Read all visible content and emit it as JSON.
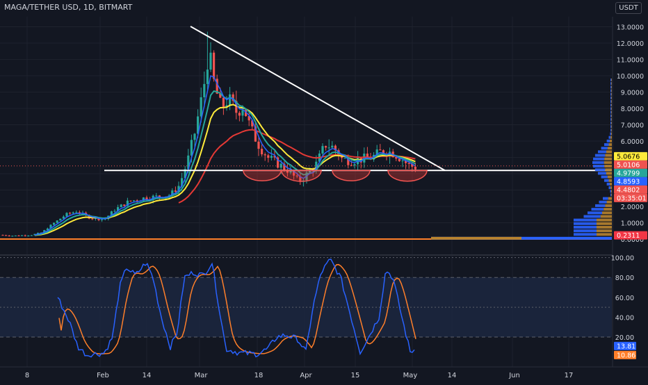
{
  "header": {
    "symbol_title": "MAGA/TETHER USD, 1D, BITMART",
    "currency_button": "USDT"
  },
  "colors": {
    "background": "#131722",
    "grid": "#1e222d",
    "up_candle": "#26a69a",
    "down_candle": "#ef5350",
    "ma_fast": "#2962ff",
    "ma_mid": "#26a69a",
    "ma_yellow": "#ffeb3b",
    "ma_red": "#e53935",
    "trendline": "#ffffff",
    "stoch_k": "#2962ff",
    "stoch_d": "#ff7f2a",
    "stoch_band": "#1c2740"
  },
  "price_axis": {
    "ticks": [
      "13.0000",
      "12.0000",
      "11.0000",
      "10.0000",
      "9.0000",
      "8.0000",
      "7.0000",
      "6.0000",
      "5.0000",
      "4.0000",
      "3.0000",
      "2.0000",
      "1.0000",
      "0.0000"
    ]
  },
  "price_labels": [
    {
      "text": "5.0676",
      "bg": "#ffeb3b",
      "fg": "#000000"
    },
    {
      "text": "5.0106",
      "bg": "#ef5350",
      "fg": "#ffffff"
    },
    {
      "text": "4.9799",
      "bg": "#26a69a",
      "fg": "#ffffff"
    },
    {
      "text": "4.8593",
      "bg": "#2962ff",
      "fg": "#ffffff"
    },
    {
      "text": "4.4802",
      "bg": "#ef5350",
      "fg": "#ffffff"
    },
    {
      "text": "03:35:01",
      "bg": "#ef5350",
      "fg": "#ffffff"
    },
    {
      "text": "0.2311",
      "bg": "#f23645",
      "fg": "#ffffff"
    }
  ],
  "stoch_axis": {
    "ticks": [
      "100.00",
      "80.00",
      "60.00",
      "40.00",
      "20.00"
    ]
  },
  "stoch_labels": [
    {
      "text": "13.81",
      "bg": "#2962ff",
      "fg": "#ffffff"
    },
    {
      "text": "10.86",
      "bg": "#ff7f2a",
      "fg": "#ffffff"
    }
  ],
  "time_axis": {
    "ticks": [
      "8",
      "Feb",
      "14",
      "Mar",
      "18",
      "Apr",
      "15",
      "May",
      "14",
      "Jun",
      "17"
    ]
  },
  "chart_data": {
    "type": "candlestick",
    "price_range": [
      0,
      13.5
    ],
    "current_price": 4.4802,
    "support_level": 4.2,
    "descending_trendline": [
      [
        0,
        13.2
      ],
      [
        1,
        4.2
      ]
    ],
    "stochastic_range": [
      0,
      100
    ],
    "stochastic_bands": [
      20,
      80
    ],
    "stoch_k_last": 13.81,
    "stoch_d_last": 10.86
  }
}
